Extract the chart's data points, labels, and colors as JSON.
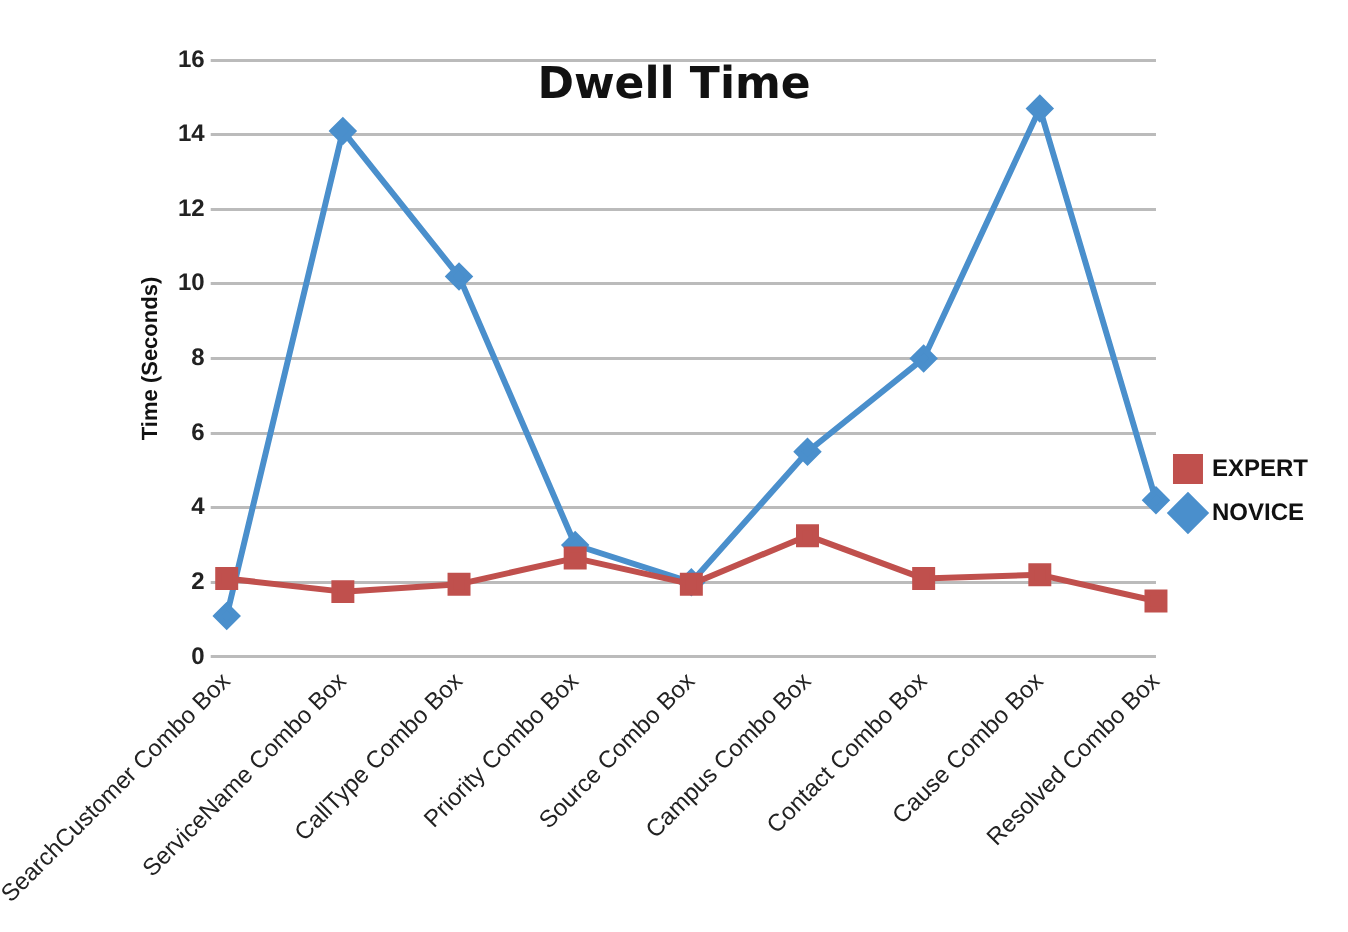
{
  "chart_data": {
    "type": "line",
    "title": "Dwell Time",
    "ylabel": "Time (Seconds)",
    "categories": [
      "SearchCustomer Combo Box",
      "ServiceName Combo Box",
      "CallType Combo Box",
      "Priority Combo Box",
      "Source Combo Box",
      "Campus Combo Box",
      "Contact Combo Box",
      "Cause Combo Box",
      "Resolved Combo Box"
    ],
    "series": [
      {
        "name": "NOVICE",
        "color": "#4a8fcc",
        "marker": "diamond",
        "values": [
          1.1,
          14.1,
          10.2,
          3.0,
          2.0,
          5.5,
          8.0,
          14.7,
          4.2
        ]
      },
      {
        "name": "EXPERT",
        "color": "#c0504d",
        "marker": "square",
        "values": [
          2.1,
          1.75,
          1.95,
          2.65,
          1.95,
          3.25,
          2.1,
          2.2,
          1.5
        ]
      }
    ],
    "ylim": [
      0,
      16
    ],
    "yticks": [
      0,
      2,
      4,
      6,
      8,
      10,
      12,
      14,
      16
    ],
    "grid": "y",
    "legend": "right"
  }
}
